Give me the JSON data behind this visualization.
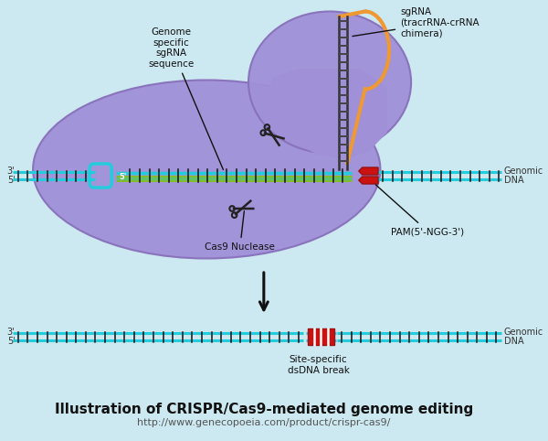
{
  "bg_color": "#cce8f0",
  "title": "Illustration of CRISPR/Cas9-mediated genome editing",
  "subtitle": "http://www.genecopoeia.com/product/crispr-cas9/",
  "title_fontsize": 11,
  "subtitle_fontsize": 8,
  "cas9_color_light": "#b8a8e8",
  "cas9_color_mid": "#9580cc",
  "cas9_outline": "#7a6ab8",
  "dna_cyan": "#22ccdd",
  "dna_dark": "#111111",
  "green_strand": "#88bb22",
  "red_pam": "#dd2222",
  "orange_loop": "#ee9933",
  "sgrna_label": "sgRNA\n(tracrRNA-crRNA\nchimera)",
  "genome_label": "Genome\nspecific\nsgRNA\nsequence",
  "cas9_label": "Cas9 Nuclease",
  "pam_label": "PAM(5'-NGG-3')",
  "genomic_dna_label": "Genomic\nDNA",
  "site_break_label": "Site-specific\ndsDNA break"
}
